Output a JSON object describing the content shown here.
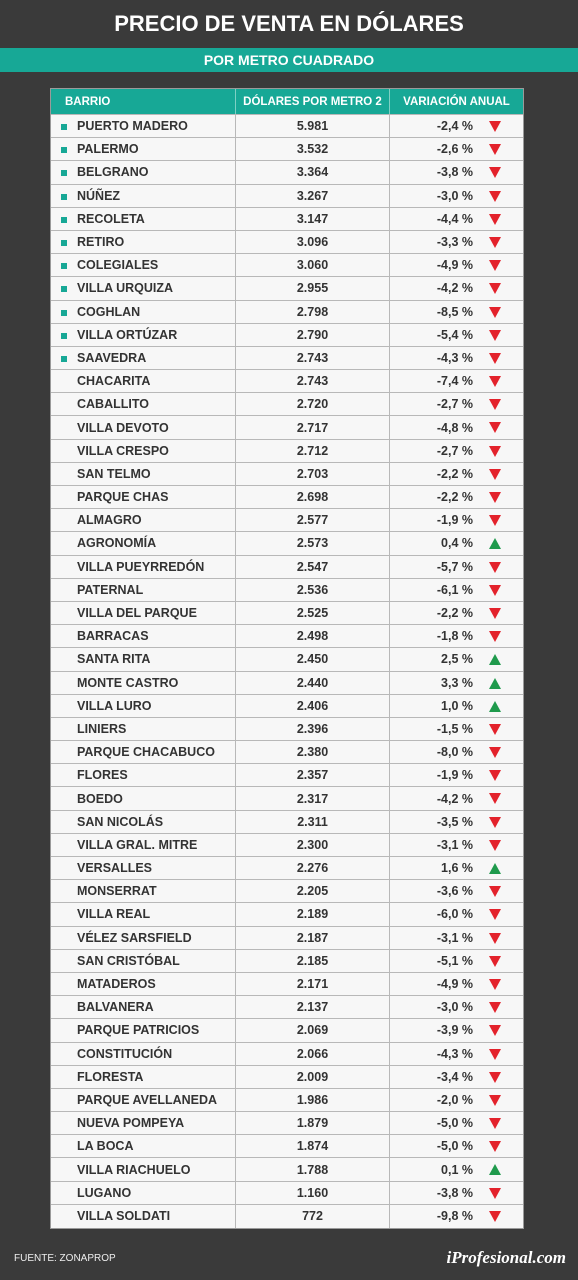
{
  "header": {
    "title": "PRECIO DE VENTA EN DÓLARES",
    "subtitle": "POR METRO CUADRADO"
  },
  "table": {
    "columns": [
      "BARRIO",
      "DÓLARES POR METRO 2",
      "VARIACIÓN ANUAL"
    ],
    "rows": [
      {
        "barrio": "PUERTO MADERO",
        "dolares": "5.981",
        "variacion": "-2,4 %",
        "marker": true
      },
      {
        "barrio": "PALERMO",
        "dolares": "3.532",
        "variacion": "-2,6 %",
        "marker": true
      },
      {
        "barrio": "BELGRANO",
        "dolares": "3.364",
        "variacion": "-3,8 %",
        "marker": true
      },
      {
        "barrio": "NÚÑEZ",
        "dolares": "3.267",
        "variacion": "-3,0 %",
        "marker": true
      },
      {
        "barrio": "RECOLETA",
        "dolares": "3.147",
        "variacion": "-4,4 %",
        "marker": true
      },
      {
        "barrio": "RETIRO",
        "dolares": "3.096",
        "variacion": "-3,3 %",
        "marker": true
      },
      {
        "barrio": "COLEGIALES",
        "dolares": "3.060",
        "variacion": "-4,9 %",
        "marker": true
      },
      {
        "barrio": "VILLA URQUIZA",
        "dolares": "2.955",
        "variacion": "-4,2 %",
        "marker": true
      },
      {
        "barrio": "COGHLAN",
        "dolares": "2.798",
        "variacion": "-8,5 %",
        "marker": true
      },
      {
        "barrio": "VILLA ORTÚZAR",
        "dolares": "2.790",
        "variacion": "-5,4 %",
        "marker": true
      },
      {
        "barrio": "SAAVEDRA",
        "dolares": "2.743",
        "variacion": "-4,3 %",
        "marker": true
      },
      {
        "barrio": "CHACARITA",
        "dolares": "2.743",
        "variacion": "-7,4 %"
      },
      {
        "barrio": "CABALLITO",
        "dolares": "2.720",
        "variacion": "-2,7 %"
      },
      {
        "barrio": "VILLA DEVOTO",
        "dolares": "2.717",
        "variacion": "-4,8 %"
      },
      {
        "barrio": "VILLA CRESPO",
        "dolares": "2.712",
        "variacion": "-2,7 %"
      },
      {
        "barrio": "SAN TELMO",
        "dolares": "2.703",
        "variacion": "-2,2 %"
      },
      {
        "barrio": "PARQUE CHAS",
        "dolares": "2.698",
        "variacion": "-2,2 %"
      },
      {
        "barrio": "ALMAGRO",
        "dolares": "2.577",
        "variacion": "-1,9 %"
      },
      {
        "barrio": "AGRONOMÍA",
        "dolares": "2.573",
        "variacion": "0,4 %"
      },
      {
        "barrio": "VILLA PUEYRREDÓN",
        "dolares": "2.547",
        "variacion": "-5,7 %"
      },
      {
        "barrio": "PATERNAL",
        "dolares": "2.536",
        "variacion": "-6,1 %"
      },
      {
        "barrio": "VILLA DEL PARQUE",
        "dolares": "2.525",
        "variacion": "-2,2 %"
      },
      {
        "barrio": "BARRACAS",
        "dolares": "2.498",
        "variacion": "-1,8 %"
      },
      {
        "barrio": "SANTA RITA",
        "dolares": "2.450",
        "variacion": "2,5 %"
      },
      {
        "barrio": "MONTE CASTRO",
        "dolares": "2.440",
        "variacion": "3,3 %"
      },
      {
        "barrio": "VILLA LURO",
        "dolares": "2.406",
        "variacion": "1,0 %"
      },
      {
        "barrio": "LINIERS",
        "dolares": "2.396",
        "variacion": "-1,5 %"
      },
      {
        "barrio": "PARQUE CHACABUCO",
        "dolares": "2.380",
        "variacion": "-8,0 %"
      },
      {
        "barrio": "FLORES",
        "dolares": "2.357",
        "variacion": "-1,9 %"
      },
      {
        "barrio": "BOEDO",
        "dolares": "2.317",
        "variacion": "-4,2 %"
      },
      {
        "barrio": "SAN NICOLÁS",
        "dolares": "2.311",
        "variacion": "-3,5 %"
      },
      {
        "barrio": "VILLA GRAL. MITRE",
        "dolares": "2.300",
        "variacion": "-3,1 %"
      },
      {
        "barrio": "VERSALLES",
        "dolares": "2.276",
        "variacion": "1,6 %"
      },
      {
        "barrio": "MONSERRAT",
        "dolares": "2.205",
        "variacion": "-3,6 %"
      },
      {
        "barrio": "VILLA REAL",
        "dolares": "2.189",
        "variacion": "-6,0 %"
      },
      {
        "barrio": "VÉLEZ SARSFIELD",
        "dolares": "2.187",
        "variacion": "-3,1 %"
      },
      {
        "barrio": "SAN CRISTÓBAL",
        "dolares": "2.185",
        "variacion": "-5,1 %"
      },
      {
        "barrio": "MATADEROS",
        "dolares": "2.171",
        "variacion": "-4,9 %"
      },
      {
        "barrio": "BALVANERA",
        "dolares": "2.137",
        "variacion": "-3,0 %"
      },
      {
        "barrio": "PARQUE PATRICIOS",
        "dolares": "2.069",
        "variacion": "-3,9 %"
      },
      {
        "barrio": "CONSTITUCIÓN",
        "dolares": "2.066",
        "variacion": "-4,3 %"
      },
      {
        "barrio": "FLORESTA",
        "dolares": "2.009",
        "variacion": "-3,4 %"
      },
      {
        "barrio": "PARQUE AVELLANEDA",
        "dolares": "1.986",
        "variacion": "-2,0 %"
      },
      {
        "barrio": "NUEVA POMPEYA",
        "dolares": "1.879",
        "variacion": "-5,0 %"
      },
      {
        "barrio": "LA BOCA",
        "dolares": "1.874",
        "variacion": "-5,0 %"
      },
      {
        "barrio": "VILLA RIACHUELO",
        "dolares": "1.788",
        "variacion": "0,1 %"
      },
      {
        "barrio": "LUGANO",
        "dolares": "1.160",
        "variacion": "-3,8 %"
      },
      {
        "barrio": "VILLA SOLDATI",
        "dolares": "772",
        "variacion": "-9,8 %"
      }
    ]
  },
  "footer": {
    "source": "FUENTE: ZONAPROP",
    "brand": "iProfesional.com"
  }
}
